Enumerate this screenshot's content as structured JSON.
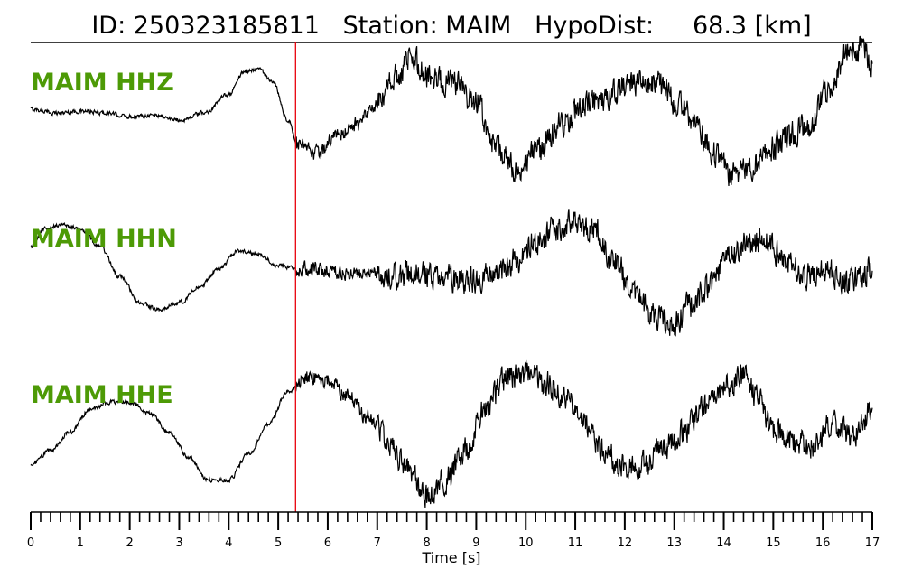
{
  "chart_data": {
    "type": "line",
    "title": "ID: 250323185811   Station: MAIM   HypoDist:     68.3 [km]",
    "xlabel": "Time [s]",
    "xlim": [
      0,
      17
    ],
    "x_ticks": [
      "0",
      "1",
      "2",
      "3",
      "4",
      "5",
      "6",
      "7",
      "8",
      "9",
      "10",
      "11",
      "12",
      "13",
      "14",
      "15",
      "16",
      "17"
    ],
    "minor_tick_step": 0.2,
    "pick_time": 5.35,
    "colors": {
      "trace": "#000000",
      "pick": "#e8000b",
      "label": "#4d9a06"
    },
    "ylim": [
      -1.1,
      1.1
    ],
    "series": [
      {
        "name": "MAIM HHZ",
        "x": [
          0,
          0.5,
          1.0,
          1.5,
          2.0,
          2.5,
          3.0,
          3.5,
          4.0,
          4.3,
          4.6,
          4.9,
          5.2,
          5.4,
          5.8,
          6.2,
          6.6,
          7.0,
          7.4,
          7.7,
          8.0,
          8.5,
          9.0,
          9.4,
          9.8,
          10.3,
          10.7,
          11.2,
          11.6,
          12.1,
          12.6,
          13.1,
          13.4,
          13.8,
          14.2,
          14.6,
          14.9,
          15.3,
          15.7,
          16.1,
          16.5,
          16.8,
          17
        ],
        "y": [
          0.05,
          0.0,
          0.02,
          0.0,
          -0.05,
          -0.03,
          -0.1,
          0.0,
          0.25,
          0.55,
          0.6,
          0.4,
          -0.1,
          -0.45,
          -0.55,
          -0.3,
          -0.15,
          0.1,
          0.5,
          0.75,
          0.5,
          0.4,
          0.15,
          -0.5,
          -0.75,
          -0.5,
          -0.15,
          0.1,
          0.2,
          0.4,
          0.4,
          0.15,
          -0.15,
          -0.55,
          -0.85,
          -0.7,
          -0.5,
          -0.3,
          -0.2,
          0.3,
          0.8,
          0.9,
          0.6
        ]
      },
      {
        "name": "MAIM HHN",
        "x": [
          0,
          0.3,
          0.6,
          1.0,
          1.4,
          1.8,
          2.2,
          2.6,
          3.0,
          3.4,
          3.8,
          4.2,
          4.6,
          5.0,
          5.4,
          5.8,
          6.3,
          6.8,
          7.3,
          7.8,
          8.3,
          8.8,
          9.3,
          9.8,
          10.2,
          10.6,
          11.0,
          11.4,
          11.8,
          12.2,
          12.6,
          13.0,
          13.3,
          13.7,
          14.1,
          14.5,
          14.9,
          15.3,
          15.7,
          16.1,
          16.5,
          17
        ],
        "y": [
          0.3,
          0.55,
          0.6,
          0.55,
          0.3,
          -0.1,
          -0.45,
          -0.55,
          -0.45,
          -0.25,
          0.0,
          0.25,
          0.2,
          0.05,
          0.0,
          0.0,
          -0.05,
          -0.05,
          -0.1,
          -0.05,
          -0.1,
          -0.15,
          -0.1,
          0.1,
          0.35,
          0.55,
          0.65,
          0.5,
          0.1,
          -0.35,
          -0.65,
          -0.75,
          -0.5,
          -0.25,
          0.15,
          0.35,
          0.35,
          0.05,
          -0.1,
          0.0,
          -0.2,
          0.0
        ]
      },
      {
        "name": "MAIM HHE",
        "x": [
          0,
          0.4,
          0.8,
          1.2,
          1.6,
          2.0,
          2.4,
          2.8,
          3.2,
          3.6,
          4.0,
          4.4,
          4.8,
          5.2,
          5.6,
          6.0,
          6.4,
          6.8,
          7.2,
          7.6,
          8.0,
          8.4,
          8.8,
          9.2,
          9.6,
          10.0,
          10.4,
          10.8,
          11.2,
          11.6,
          12.0,
          12.4,
          12.8,
          13.2,
          13.6,
          14.0,
          14.4,
          14.7,
          15.0,
          15.4,
          15.8,
          16.2,
          16.6,
          17
        ],
        "y": [
          -0.55,
          -0.35,
          -0.1,
          0.2,
          0.3,
          0.3,
          0.15,
          -0.1,
          -0.45,
          -0.75,
          -0.75,
          -0.4,
          0.0,
          0.45,
          0.65,
          0.6,
          0.4,
          0.1,
          -0.2,
          -0.6,
          -0.95,
          -0.75,
          -0.3,
          0.25,
          0.6,
          0.7,
          0.55,
          0.4,
          0.0,
          -0.35,
          -0.6,
          -0.55,
          -0.3,
          -0.1,
          0.2,
          0.5,
          0.65,
          0.35,
          -0.1,
          -0.2,
          -0.3,
          0.0,
          -0.15,
          0.2
        ]
      }
    ]
  }
}
